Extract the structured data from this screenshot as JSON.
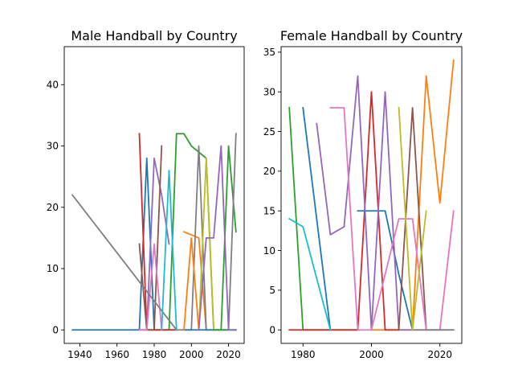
{
  "chart_data": [
    {
      "type": "line",
      "title": "Male Handball by Country",
      "xlabel": "",
      "ylabel": "",
      "xlim": [
        1931.6,
        2028.4
      ],
      "ylim": [
        -2.2,
        46.2
      ],
      "xticks": [
        1940,
        1960,
        1980,
        2000,
        2020
      ],
      "yticks": [
        0,
        10,
        20,
        30,
        40
      ],
      "grid": false,
      "series": [
        {
          "color": "#1f77b4",
          "x": [
            1936,
            1972,
            1976,
            1980,
            1984,
            1988,
            1992
          ],
          "y": [
            0,
            0,
            28,
            0,
            0,
            0,
            0
          ]
        },
        {
          "color": "#ff7f0e",
          "x": [
            1996,
            2000,
            2004,
            2008
          ],
          "y": [
            16,
            15.5,
            15,
            0
          ]
        },
        {
          "color": "#2ca02c",
          "x": [
            1972,
            1976,
            1980,
            1984,
            1988,
            1992,
            1996,
            2000,
            2004,
            2008,
            2012,
            2016,
            2020,
            2024
          ],
          "y": [
            0,
            0,
            0,
            0,
            0,
            32,
            32,
            30,
            29,
            28,
            0,
            0,
            30,
            16
          ]
        },
        {
          "color": "#d62728",
          "x": [
            1972,
            1976,
            1980,
            1984,
            1988,
            1992
          ],
          "y": [
            32,
            0,
            0,
            0,
            0,
            0
          ]
        },
        {
          "color": "#9467bd",
          "x": [
            1972,
            1976,
            1980,
            1984,
            1988
          ],
          "y": [
            0,
            0,
            28,
            22,
            14
          ]
        },
        {
          "color": "#8c564b",
          "x": [
            1972,
            1976,
            1980,
            1984
          ],
          "y": [
            14,
            0,
            0,
            30
          ]
        },
        {
          "color": "#e377c2",
          "x": [
            1972,
            1976,
            1980,
            1984
          ],
          "y": [
            0,
            0,
            14,
            0
          ]
        },
        {
          "color": "#7f7f7f",
          "x": [
            1936,
            1992,
            1996,
            2000,
            2004,
            2008,
            2012,
            2016,
            2020,
            2024
          ],
          "y": [
            22,
            0,
            0,
            0,
            30,
            0,
            0,
            0,
            0,
            32
          ]
        },
        {
          "color": "#bcbd22",
          "x": [
            2004,
            2008,
            2012
          ],
          "y": [
            0,
            28,
            0
          ]
        },
        {
          "color": "#17becf",
          "x": [
            1984,
            1988,
            1992
          ],
          "y": [
            0,
            26,
            0
          ]
        },
        {
          "color": "#1f77b4",
          "x": [
            1996,
            2000,
            2004,
            2008,
            2012,
            2016,
            2020,
            2024
          ],
          "y": [
            0,
            0,
            0,
            0,
            0,
            0,
            0,
            0
          ]
        },
        {
          "color": "#ff7f0e",
          "x": [
            1996,
            2000,
            2004
          ],
          "y": [
            0,
            15,
            0
          ]
        },
        {
          "color": "#2ca02c",
          "x": [
            2012,
            2016,
            2020,
            2024
          ],
          "y": [
            0,
            0,
            0,
            0
          ]
        },
        {
          "color": "#9467bd",
          "x": [
            2004,
            2008,
            2012,
            2016,
            2020,
            2024
          ],
          "y": [
            0,
            15,
            15,
            30,
            0,
            0
          ]
        }
      ]
    },
    {
      "type": "line",
      "title": "Female Handball by Country",
      "xlabel": "",
      "ylabel": "",
      "xlim": [
        1973.6,
        2026.4
      ],
      "ylim": [
        -1.7,
        35.7
      ],
      "xticks": [
        1980,
        2000,
        2020
      ],
      "yticks": [
        0,
        5,
        10,
        15,
        20,
        25,
        30,
        35
      ],
      "grid": false,
      "series": [
        {
          "color": "#1f77b4",
          "x": [
            1980,
            1988
          ],
          "y": [
            28,
            0
          ]
        },
        {
          "color": "#1f77b4",
          "x": [
            1996,
            2000,
            2004,
            2008,
            2012
          ],
          "y": [
            15,
            15,
            15,
            7,
            0
          ]
        },
        {
          "color": "#ff7f0e",
          "x": [
            2000,
            2004,
            2008,
            2012,
            2016,
            2020,
            2024
          ],
          "y": [
            0,
            0,
            0,
            0,
            32,
            16,
            34
          ]
        },
        {
          "color": "#2ca02c",
          "x": [
            1976,
            1980,
            1984,
            1988,
            1992,
            1996
          ],
          "y": [
            28,
            0,
            0,
            0,
            0,
            0
          ]
        },
        {
          "color": "#d62728",
          "x": [
            1976,
            1980,
            1984,
            1988,
            1992,
            1996,
            2000,
            2004,
            2008
          ],
          "y": [
            0,
            0,
            0,
            0,
            0,
            0,
            30,
            0,
            0
          ]
        },
        {
          "color": "#9467bd",
          "x": [
            1984,
            1988,
            1992,
            1996,
            2000,
            2004,
            2008,
            2012,
            2016,
            2020,
            2024
          ],
          "y": [
            26,
            12,
            13,
            32,
            0,
            30,
            0,
            0,
            0,
            0,
            0
          ]
        },
        {
          "color": "#8c564b",
          "x": [
            2008,
            2012,
            2016
          ],
          "y": [
            0,
            28,
            0
          ]
        },
        {
          "color": "#e377c2",
          "x": [
            1988,
            1992,
            1996,
            2000,
            2004,
            2008,
            2012,
            2016,
            2020,
            2024
          ],
          "y": [
            28,
            28,
            0,
            0,
            7,
            14,
            14,
            0,
            0,
            15
          ]
        },
        {
          "color": "#7f7f7f",
          "x": [
            2012,
            2016,
            2020,
            2024
          ],
          "y": [
            0,
            0,
            0,
            0
          ]
        },
        {
          "color": "#bcbd22",
          "x": [
            2008,
            2012,
            2016
          ],
          "y": [
            28,
            0,
            15
          ]
        },
        {
          "color": "#17becf",
          "x": [
            1976,
            1980,
            1988
          ],
          "y": [
            14,
            13,
            0
          ]
        }
      ]
    }
  ]
}
